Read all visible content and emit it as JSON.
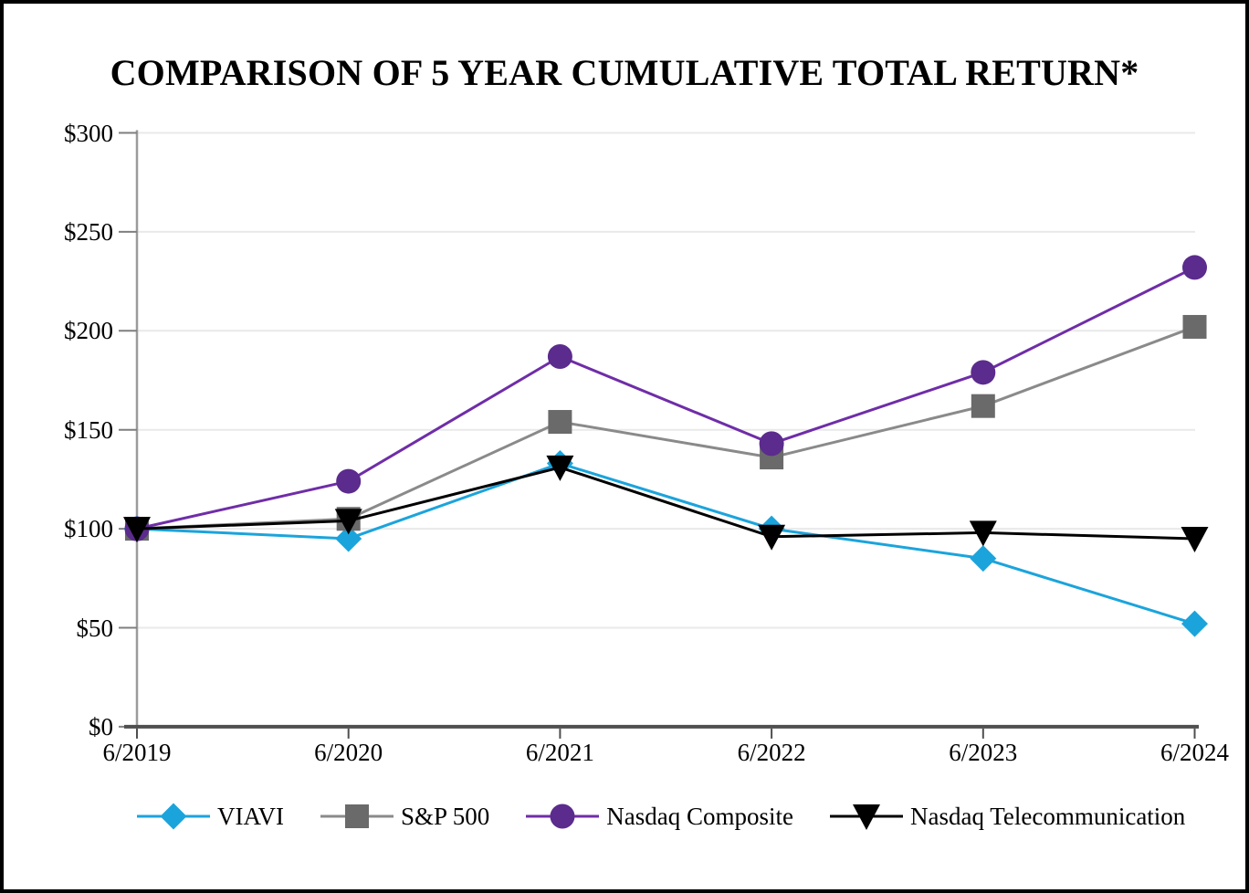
{
  "page": {
    "title": "COMPARISON OF 5 YEAR CUMULATIVE TOTAL RETURN*"
  },
  "chart_data": {
    "type": "line",
    "title": "COMPARISON OF 5 YEAR CUMULATIVE TOTAL RETURN*",
    "categories": [
      "6/2019",
      "6/2020",
      "6/2021",
      "6/2022",
      "6/2023",
      "6/2024"
    ],
    "series": [
      {
        "name": "VIAVI",
        "marker": "diamond",
        "color": "#1BA4DC",
        "line_color": "#1BA4DC",
        "values": [
          100,
          95,
          133,
          100,
          85,
          52
        ]
      },
      {
        "name": "S&P 500",
        "marker": "square",
        "color": "#6A6A6A",
        "line_color": "#8A8A8A",
        "values": [
          100,
          105,
          154,
          136,
          162,
          202
        ]
      },
      {
        "name": "Nasdaq Composite",
        "marker": "circle",
        "color": "#5B2B8D",
        "line_color": "#6F2DA8",
        "values": [
          100,
          124,
          187,
          143,
          179,
          232
        ]
      },
      {
        "name": "Nasdaq Telecommunication",
        "marker": "triangle-down",
        "color": "#000000",
        "line_color": "#000000",
        "values": [
          100,
          104,
          131,
          96,
          98,
          95
        ]
      }
    ],
    "ylim": [
      0,
      300
    ],
    "yticks": [
      {
        "value": 0,
        "label": "$0"
      },
      {
        "value": 50,
        "label": "$50"
      },
      {
        "value": 100,
        "label": "$100"
      },
      {
        "value": 150,
        "label": "$150"
      },
      {
        "value": 200,
        "label": "$200"
      },
      {
        "value": 250,
        "label": "$250"
      },
      {
        "value": 300,
        "label": "$300"
      }
    ],
    "xlabel": "",
    "ylabel": "",
    "grid": "horizontal",
    "legend_position": "bottom"
  },
  "colors": {
    "background": "#FFFFFF",
    "border": "#000000",
    "gridline": "#E9E9E9",
    "y_axis": "#9B9B9B",
    "x_axis": "#4F4F4F",
    "tick": "#7F7F7F"
  }
}
